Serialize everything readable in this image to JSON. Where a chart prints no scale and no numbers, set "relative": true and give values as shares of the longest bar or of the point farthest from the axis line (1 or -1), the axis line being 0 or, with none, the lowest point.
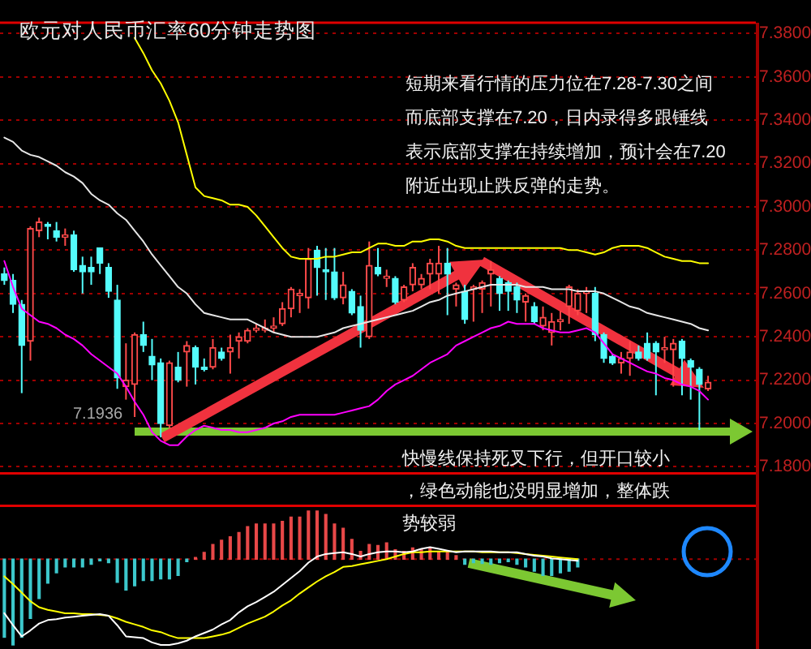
{
  "chart_data": [
    {
      "type": "candlestick",
      "title": "欧元对人民币汇率60分钟走势图",
      "categories": [
        null,
        null,
        null,
        null,
        null,
        null,
        null,
        null,
        null,
        null,
        null,
        null,
        null,
        null,
        null,
        null,
        null,
        null,
        null,
        null,
        null,
        null,
        null,
        null,
        null,
        null,
        null,
        null,
        null,
        null,
        null,
        null,
        null,
        null,
        null,
        null,
        null,
        null,
        null,
        null,
        null,
        null,
        null,
        null,
        null,
        null,
        null,
        null,
        null,
        null,
        null,
        null,
        null,
        null,
        null,
        null,
        null,
        null,
        null,
        null,
        null,
        null,
        null,
        null,
        null,
        null,
        null,
        null,
        null,
        null,
        null,
        null,
        null,
        null,
        null,
        null,
        null,
        null,
        null,
        null,
        null,
        null,
        null,
        null,
        null,
        null,
        null
      ],
      "ohlc": [
        [
          7.269,
          7.272,
          7.264,
          7.266
        ],
        [
          7.266,
          7.269,
          7.251,
          7.255
        ],
        [
          7.255,
          7.257,
          7.214,
          7.236
        ],
        [
          7.238,
          7.291,
          7.229,
          7.29
        ],
        [
          7.289,
          7.295,
          7.286,
          7.293
        ],
        [
          7.292,
          7.293,
          7.285,
          7.291
        ],
        [
          7.289,
          7.293,
          7.284,
          7.286
        ],
        [
          7.286,
          7.29,
          7.282,
          7.287
        ],
        [
          7.287,
          7.289,
          7.27,
          7.271
        ],
        [
          7.273,
          7.277,
          7.26,
          7.27
        ],
        [
          7.272,
          7.277,
          7.264,
          7.27
        ],
        [
          7.281,
          7.281,
          7.269,
          7.274
        ],
        [
          7.272,
          7.274,
          7.258,
          7.261
        ],
        [
          7.257,
          7.264,
          7.216,
          7.221
        ],
        [
          7.217,
          7.237,
          7.211,
          7.22
        ],
        [
          7.218,
          7.242,
          7.203,
          7.241
        ],
        [
          7.241,
          7.247,
          7.233,
          7.236
        ],
        [
          7.231,
          7.239,
          7.22,
          7.227
        ],
        [
          7.228,
          7.23,
          7.1936,
          7.2
        ],
        [
          7.199,
          7.229,
          7.198,
          7.228
        ],
        [
          7.226,
          7.233,
          7.219,
          7.22
        ],
        [
          7.233,
          7.238,
          7.217,
          7.236
        ],
        [
          7.235,
          7.236,
          7.218,
          7.226
        ],
        [
          7.226,
          7.23,
          7.224,
          7.225
        ],
        [
          7.226,
          7.239,
          7.225,
          7.235
        ],
        [
          7.233,
          7.235,
          7.229,
          7.23
        ],
        [
          7.233,
          7.241,
          7.223,
          7.235
        ],
        [
          7.238,
          7.242,
          7.23,
          7.24
        ],
        [
          7.238,
          7.244,
          7.237,
          7.243
        ],
        [
          7.243,
          7.246,
          7.242,
          7.244
        ],
        [
          7.243,
          7.248,
          7.242,
          7.244
        ],
        [
          7.244,
          7.249,
          7.242,
          7.245
        ],
        [
          7.246,
          7.256,
          7.245,
          7.253
        ],
        [
          7.253,
          7.263,
          7.249,
          7.262
        ],
        [
          7.259,
          7.262,
          7.251,
          7.26
        ],
        [
          7.258,
          7.281,
          7.253,
          7.276
        ],
        [
          7.28,
          7.282,
          7.259,
          7.272
        ],
        [
          7.271,
          7.281,
          7.257,
          7.27
        ],
        [
          7.27,
          7.281,
          7.257,
          7.258
        ],
        [
          7.258,
          7.27,
          7.255,
          7.264
        ],
        [
          7.261,
          7.262,
          7.25,
          7.251
        ],
        [
          7.254,
          7.259,
          7.235,
          7.243
        ],
        [
          7.24,
          7.284,
          7.239,
          7.273
        ],
        [
          7.272,
          7.281,
          7.268,
          7.269
        ],
        [
          7.267,
          7.271,
          7.263,
          7.268
        ],
        [
          7.267,
          7.268,
          7.255,
          7.256
        ],
        [
          7.257,
          7.264,
          7.256,
          7.263
        ],
        [
          7.264,
          7.274,
          7.261,
          7.272
        ],
        [
          7.264,
          7.269,
          7.262,
          7.267
        ],
        [
          7.269,
          7.276,
          7.262,
          7.274
        ],
        [
          7.269,
          7.282,
          7.26,
          7.274
        ],
        [
          7.274,
          7.281,
          7.25,
          7.269
        ],
        [
          7.262,
          7.265,
          7.254,
          7.264
        ],
        [
          7.261,
          7.264,
          7.246,
          7.248
        ],
        [
          7.262,
          7.264,
          7.247,
          7.263
        ],
        [
          7.262,
          7.266,
          7.251,
          7.265
        ],
        [
          7.269,
          7.275,
          7.254,
          7.271
        ],
        [
          7.267,
          7.268,
          7.252,
          7.26
        ],
        [
          7.265,
          7.266,
          7.252,
          7.261
        ],
        [
          7.263,
          7.265,
          7.251,
          7.257
        ],
        [
          7.256,
          7.26,
          7.247,
          7.259
        ],
        [
          7.254,
          7.256,
          7.246,
          7.247
        ],
        [
          7.245,
          7.254,
          7.243,
          7.249
        ],
        [
          7.242,
          7.251,
          7.236,
          7.247
        ],
        [
          7.247,
          7.252,
          7.243,
          7.248
        ],
        [
          7.254,
          7.264,
          7.246,
          7.263
        ],
        [
          7.252,
          7.262,
          7.25,
          7.26
        ],
        [
          7.26,
          7.263,
          7.251,
          7.261
        ],
        [
          7.26,
          7.263,
          7.238,
          7.241
        ],
        [
          7.241,
          7.242,
          7.228,
          7.23
        ],
        [
          7.231,
          7.232,
          7.227,
          7.228
        ],
        [
          7.228,
          7.233,
          7.223,
          7.23
        ],
        [
          7.23,
          7.238,
          7.222,
          7.233
        ],
        [
          7.233,
          7.236,
          7.229,
          7.23
        ],
        [
          7.237,
          7.242,
          7.229,
          7.23
        ],
        [
          7.237,
          7.238,
          7.213,
          7.233
        ],
        [
          7.234,
          7.24,
          7.228,
          7.235
        ],
        [
          7.234,
          7.239,
          7.217,
          7.237
        ],
        [
          7.238,
          7.239,
          7.213,
          7.23
        ],
        [
          7.229,
          7.23,
          7.211,
          7.226
        ],
        [
          7.225,
          7.226,
          7.197,
          7.218
        ],
        [
          7.216,
          7.222,
          7.215,
          7.219
        ],
        null,
        null,
        null,
        null,
        null
      ],
      "colors": [
        "#54fcfc",
        "#54fcfc",
        "#54fcfc",
        "#ff4a4a",
        "#ff4a4a",
        "#54fcfc",
        "#54fcfc",
        "#ff4a4a",
        "#54fcfc",
        "#54fcfc",
        "#54fcfc",
        "#54fcfc",
        "#54fcfc",
        "#54fcfc",
        "#ff4a4a",
        "#ff4a4a",
        "#54fcfc",
        "#54fcfc",
        "#54fcfc",
        "#ff4a4a",
        "#54fcfc",
        "#ff4a4a",
        "#54fcfc",
        "#54fcfc",
        "#ff4a4a",
        "#54fcfc",
        "#ff4a4a",
        "#ff4a4a",
        "#ff4a4a",
        "#ff4a4a",
        "#ff4a4a",
        "#ff4a4a",
        "#ff4a4a",
        "#ff4a4a",
        "#ff4a4a",
        "#ff4a4a",
        "#54fcfc",
        "#54fcfc",
        "#54fcfc",
        "#ff4a4a",
        "#54fcfc",
        "#54fcfc",
        "#ff4a4a",
        "#54fcfc",
        "#ff4a4a",
        "#54fcfc",
        "#ff4a4a",
        "#ff4a4a",
        "#ff4a4a",
        "#ff4a4a",
        "#ff4a4a",
        "#54fcfc",
        "#ff4a4a",
        "#54fcfc",
        "#ff4a4a",
        "#ff4a4a",
        "#ff4a4a",
        "#54fcfc",
        "#54fcfc",
        "#54fcfc",
        "#ff4a4a",
        "#54fcfc",
        "#ff4a4a",
        "#ff4a4a",
        "#ff4a4a",
        "#ff4a4a",
        "#ff4a4a",
        "#ff4a4a",
        "#54fcfc",
        "#54fcfc",
        "#54fcfc",
        "#ff4a4a",
        "#ff4a4a",
        "#54fcfc",
        "#54fcfc",
        "#54fcfc",
        "#ff4a4a",
        "#ff4a4a",
        "#54fcfc",
        "#54fcfc",
        "#54fcfc",
        "#ff4a4a",
        null,
        null,
        null,
        null,
        null
      ],
      "series": [
        {
          "type": "line",
          "color": "#ffff00",
          "values": [
            null,
            null,
            null,
            null,
            null,
            null,
            null,
            null,
            null,
            null,
            null,
            null,
            null,
            null,
            null,
            7.378,
            7.371,
            7.363,
            7.357,
            7.349,
            7.339,
            7.324,
            7.309,
            7.305,
            7.304,
            7.303,
            7.301,
            7.301,
            7.3,
            7.296,
            7.291,
            7.286,
            7.281,
            7.277,
            7.276,
            7.276,
            7.276,
            7.277,
            7.277,
            7.278,
            7.279,
            7.279,
            7.281,
            7.283,
            7.283,
            7.282,
            7.282,
            7.284,
            7.284,
            7.285,
            7.285,
            7.284,
            7.282,
            7.281,
            7.281,
            7.281,
            7.281,
            7.281,
            7.281,
            7.281,
            7.281,
            7.281,
            7.281,
            7.281,
            7.281,
            7.28,
            7.28,
            7.279,
            7.278,
            7.279,
            7.281,
            7.282,
            7.282,
            7.282,
            7.281,
            7.279,
            7.277,
            7.276,
            7.275,
            7.275,
            7.274,
            7.274,
            null,
            null,
            null,
            null,
            null
          ]
        },
        {
          "type": "line",
          "color": "#e6e6e6",
          "values": [
            7.332,
            7.33,
            7.326,
            7.324,
            7.323,
            7.321,
            7.319,
            7.316,
            7.314,
            7.311,
            7.306,
            7.303,
            7.301,
            7.297,
            7.294,
            7.289,
            7.284,
            7.278,
            7.273,
            7.268,
            7.263,
            7.26,
            7.255,
            7.251,
            7.25,
            7.249,
            7.248,
            7.248,
            7.248,
            7.246,
            7.244,
            7.242,
            7.241,
            7.24,
            7.24,
            7.24,
            7.24,
            7.241,
            7.242,
            7.244,
            7.245,
            7.246,
            7.247,
            7.248,
            7.249,
            7.25,
            7.251,
            7.252,
            7.254,
            7.256,
            7.257,
            7.259,
            7.26,
            7.261,
            7.262,
            7.263,
            7.264,
            7.264,
            7.264,
            7.264,
            7.263,
            7.263,
            7.263,
            7.262,
            7.262,
            7.262,
            7.261,
            7.261,
            7.261,
            7.26,
            7.258,
            7.256,
            7.254,
            7.253,
            7.251,
            7.25,
            7.249,
            7.248,
            7.247,
            7.246,
            7.244,
            7.243,
            null,
            null,
            null,
            null,
            null
          ]
        },
        {
          "type": "line",
          "color": "#ff00ff",
          "values": [
            7.275,
            7.263,
            7.253,
            7.25,
            7.247,
            7.246,
            7.244,
            7.241,
            7.239,
            7.236,
            7.232,
            7.229,
            7.226,
            7.223,
            7.217,
            7.21,
            7.204,
            7.196,
            7.192,
            7.19,
            7.19,
            7.194,
            7.197,
            7.199,
            7.198,
            7.197,
            7.197,
            7.196,
            7.196,
            7.197,
            7.198,
            7.2,
            7.201,
            7.203,
            7.204,
            7.204,
            7.204,
            7.204,
            7.204,
            7.205,
            7.206,
            7.207,
            7.208,
            7.211,
            7.215,
            7.218,
            7.22,
            7.222,
            7.225,
            7.228,
            7.23,
            7.232,
            7.236,
            7.238,
            7.24,
            7.242,
            7.244,
            7.245,
            7.247,
            7.246,
            7.246,
            7.246,
            7.244,
            7.243,
            7.242,
            7.242,
            7.243,
            7.244,
            7.242,
            7.237,
            7.232,
            7.23,
            7.228,
            7.226,
            7.224,
            7.223,
            7.221,
            7.22,
            7.218,
            7.217,
            7.215,
            7.211,
            null,
            null,
            null,
            null,
            null
          ]
        }
      ],
      "ylim": [
        7.177,
        7.385
      ],
      "yticks": [
        {
          "value": 7.18,
          "label": "7.1800"
        },
        {
          "value": 7.2,
          "label": "7.2000"
        },
        {
          "value": 7.22,
          "label": "7.2200"
        },
        {
          "value": 7.24,
          "label": "7.2400"
        },
        {
          "value": 7.26,
          "label": "7.2600"
        },
        {
          "value": 7.28,
          "label": "7.2800"
        },
        {
          "value": 7.3,
          "label": "7.3000"
        },
        {
          "value": 7.32,
          "label": "7.3200"
        },
        {
          "value": 7.34,
          "label": "7.3400"
        },
        {
          "value": 7.36,
          "label": "7.3600"
        },
        {
          "value": 7.38,
          "label": "7.3800"
        }
      ],
      "grid": "y",
      "marker": "none",
      "annotations": [
        "短期来看行情的压力位在7.28-7.30之间而底部支撑在7.20，日内录得多跟锤线表示底部支撑在持续增加，预计会在7.20附近出现止跌反弹的走势。",
        "7.1936"
      ]
    },
    {
      "type": "bar",
      "relative": true,
      "marker": "none",
      "categories": [
        null,
        null,
        null,
        null,
        null,
        null,
        null,
        null,
        null,
        null,
        null,
        null,
        null,
        null,
        null,
        null,
        null,
        null,
        null,
        null,
        null,
        null,
        null,
        null,
        null,
        null,
        null,
        null,
        null,
        null,
        null,
        null,
        null,
        null,
        null,
        null,
        null,
        null,
        null,
        null,
        null,
        null,
        null,
        null,
        null,
        null,
        null,
        null,
        null,
        null,
        null,
        null,
        null,
        null,
        null,
        null,
        null,
        null,
        null,
        null,
        null,
        null,
        null,
        null,
        null,
        null,
        null,
        null,
        null,
        null,
        null,
        null,
        null,
        null,
        null,
        null,
        null,
        null,
        null,
        null,
        null,
        null,
        null,
        null,
        null,
        null,
        null
      ],
      "series": [
        {
          "colors": [
            "#3cc8cc",
            "#3cc8cc",
            "#3cc8cc",
            "#3cc8cc",
            "#3cc8cc",
            "#3cc8cc",
            "#3cc8cc",
            "#3cc8cc",
            "#3cc8cc",
            "#3cc8cc",
            "#3cc8cc",
            "#3cc8cc",
            "#3cc8cc",
            "#3cc8cc",
            "#3cc8cc",
            "#3cc8cc",
            "#3cc8cc",
            "#3cc8cc",
            "#3cc8cc",
            "#3cc8cc",
            "#3cc8cc",
            "#3cc8cc",
            "#e84848",
            "#e84848",
            "#e84848",
            "#e84848",
            "#e84848",
            "#e84848",
            "#e84848",
            "#e84848",
            "#e84848",
            "#e84848",
            "#e84848",
            "#e84848",
            "#e84848",
            "#e84848",
            "#e84848",
            "#e84848",
            "#e84848",
            "#e84848",
            "#e84848",
            "#e84848",
            "#e84848",
            "#e84848",
            "#e84848",
            "#e84848",
            "#e84848",
            "#e84848",
            "#e84848",
            "#e84848",
            "#e84848",
            "#e84848",
            "#e84848",
            "#3cc8cc",
            "#3cc8cc",
            "#3cc8cc",
            "#3cc8cc",
            "#3cc8cc",
            "#3cc8cc",
            "#3cc8cc",
            "#3cc8cc",
            "#3cc8cc",
            "#3cc8cc",
            "#3cc8cc",
            "#3cc8cc",
            "#3cc8cc",
            "#3cc8cc",
            null,
            null,
            null,
            null,
            null,
            null,
            null,
            null,
            null,
            null,
            null,
            null,
            null,
            null,
            null,
            null,
            null,
            null,
            null,
            null
          ],
          "values": [
            -0.91,
            -1.0,
            -0.91,
            -0.69,
            -0.46,
            -0.28,
            -0.16,
            -0.09,
            -0.09,
            -0.09,
            -0.06,
            -0.02,
            -0.04,
            -0.27,
            -0.36,
            -0.31,
            -0.25,
            -0.25,
            -0.23,
            -0.23,
            -0.19,
            -0.03,
            0.02,
            0.08,
            0.17,
            0.22,
            0.26,
            0.31,
            0.38,
            0.41,
            0.41,
            0.41,
            0.44,
            0.49,
            0.49,
            0.56,
            0.56,
            0.52,
            0.41,
            0.36,
            0.23,
            0.09,
            0.17,
            0.16,
            0.19,
            0.11,
            0.09,
            0.13,
            0.11,
            0.13,
            0.09,
            0.08,
            0.04,
            -0.06,
            -0.04,
            -0.05,
            -0.06,
            -0.04,
            -0.03,
            -0.06,
            -0.09,
            -0.14,
            -0.19,
            -0.19,
            -0.16,
            -0.14,
            -0.09,
            null,
            null,
            null,
            null,
            null,
            null,
            null,
            null,
            null,
            null,
            null,
            null,
            null,
            null,
            null,
            null,
            null,
            null,
            null,
            null
          ]
        },
        {
          "type": "line",
          "color": "#ffffff",
          "values": [
            -0.63,
            -0.77,
            -0.9,
            -0.83,
            -0.75,
            -0.71,
            -0.7,
            -0.68,
            -0.67,
            -0.66,
            -0.65,
            -0.64,
            -0.66,
            -0.77,
            -0.9,
            -0.91,
            -0.92,
            -0.97,
            -1.0,
            -1.0,
            -0.98,
            -0.95,
            -0.9,
            -0.86,
            -0.82,
            -0.76,
            -0.71,
            -0.62,
            -0.55,
            -0.5,
            -0.44,
            -0.38,
            -0.3,
            -0.22,
            -0.14,
            -0.04,
            0.03,
            0.06,
            0.07,
            0.08,
            0.06,
            0.03,
            0.06,
            0.08,
            0.09,
            0.09,
            0.08,
            0.09,
            0.12,
            0.14,
            0.12,
            0.1,
            0.08,
            0.09,
            0.09,
            0.09,
            0.09,
            0.08,
            0.08,
            0.08,
            0.06,
            0.04,
            0.03,
            0.01,
            0.0,
            -0.01,
            -0.02,
            null,
            null,
            null,
            null,
            null,
            null,
            null,
            null,
            null,
            null,
            null,
            null,
            null,
            null,
            null,
            null,
            null,
            null,
            null,
            null
          ]
        },
        {
          "type": "line",
          "color": "#ffff00",
          "values": [
            -0.2,
            -0.29,
            -0.39,
            -0.49,
            -0.56,
            -0.59,
            -0.61,
            -0.63,
            -0.63,
            -0.64,
            -0.64,
            -0.65,
            -0.66,
            -0.69,
            -0.73,
            -0.76,
            -0.79,
            -0.83,
            -0.85,
            -0.89,
            -0.92,
            -0.92,
            -0.92,
            -0.92,
            -0.9,
            -0.88,
            -0.85,
            -0.8,
            -0.75,
            -0.71,
            -0.67,
            -0.61,
            -0.54,
            -0.48,
            -0.4,
            -0.33,
            -0.26,
            -0.2,
            -0.15,
            -0.09,
            -0.08,
            -0.06,
            -0.04,
            -0.02,
            0.0,
            0.03,
            0.06,
            0.08,
            0.08,
            0.09,
            0.09,
            0.09,
            0.09,
            0.09,
            0.09,
            0.08,
            0.08,
            0.08,
            0.08,
            0.07,
            0.06,
            0.05,
            0.04,
            0.03,
            0.02,
            0.01,
            0.0,
            null,
            null,
            null,
            null,
            null,
            null,
            null,
            null,
            null,
            null,
            null,
            null,
            null,
            null,
            null,
            null,
            null,
            null,
            null,
            null
          ]
        }
      ],
      "ref_lines": [
        {
          "axis": "y",
          "value": 0,
          "color": "#a00000",
          "line_style": "dotted"
        }
      ],
      "annotations": [
        "快慢线保持死叉下行，但开口较小，绿色动能也没明显增加，整体跌势较弱"
      ]
    }
  ]
}
